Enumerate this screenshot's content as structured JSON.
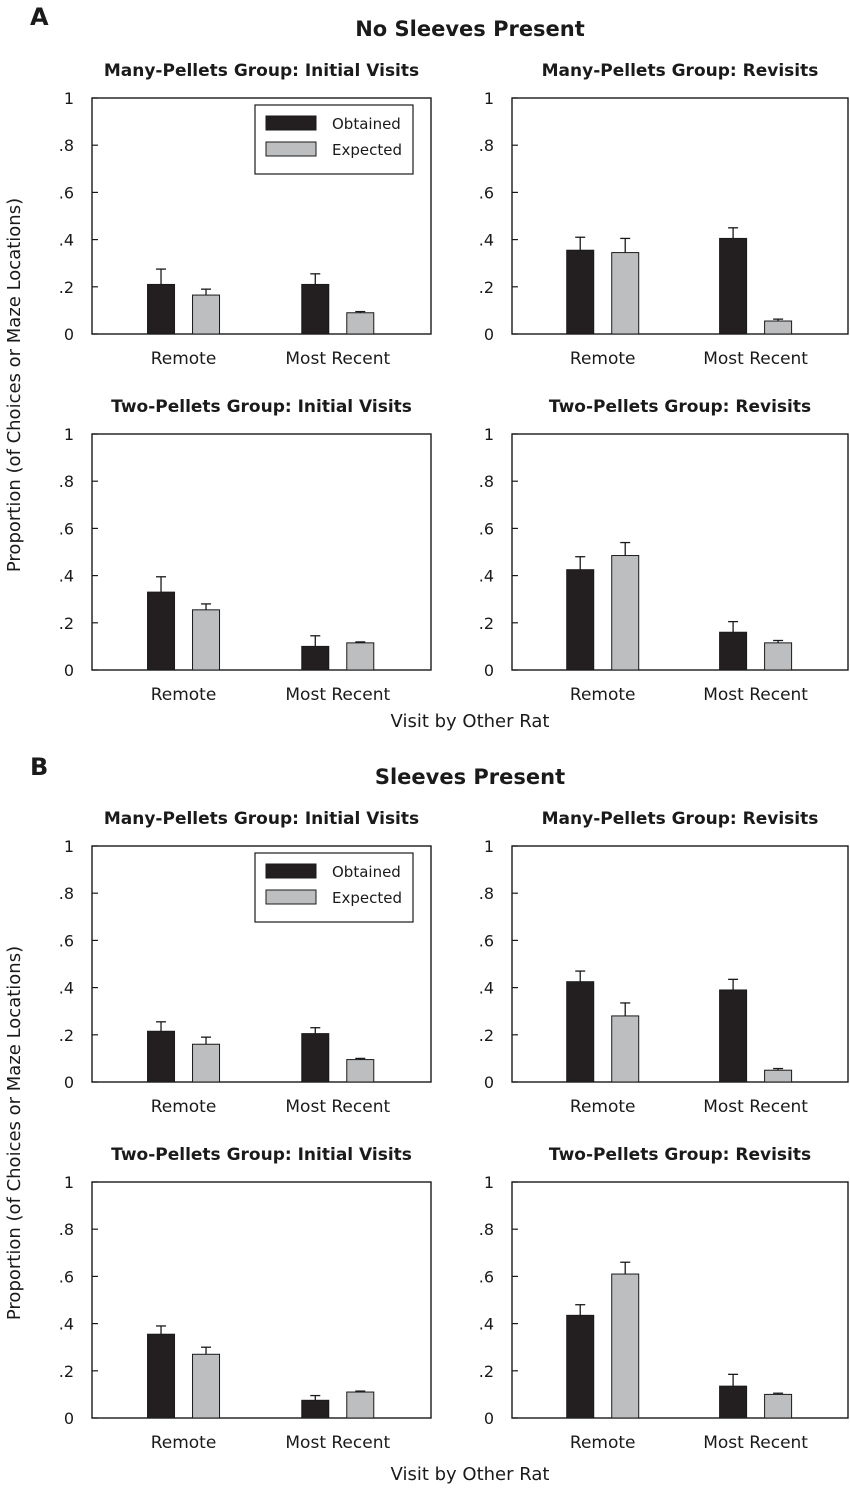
{
  "figure": {
    "ylabel": "Proportion (of Choices or Maze Locations)",
    "xlabel": "Visit by Other Rat",
    "colors": {
      "obtained": "#231f20",
      "expected": "#bcbec0",
      "frame": "#1a1a1a"
    }
  },
  "sections": [
    {
      "letter": "A",
      "title": "No Sleeves Present"
    },
    {
      "letter": "B",
      "title": "Sleeves Present"
    }
  ],
  "chart_data": [
    {
      "type": "bar",
      "section": "A",
      "title": "Many-Pellets Group: Initial Visits",
      "categories": [
        "Remote",
        "Most Recent"
      ],
      "series": [
        {
          "name": "Obtained",
          "values": [
            0.21,
            0.21
          ],
          "errors": [
            0.065,
            0.045
          ]
        },
        {
          "name": "Expected",
          "values": [
            0.165,
            0.09
          ],
          "errors": [
            0.025,
            0.005
          ]
        }
      ],
      "ylim": [
        0,
        1
      ],
      "yticks": [
        "0",
        ".2",
        ".4",
        ".6",
        ".8",
        "1"
      ],
      "legend": "top-right"
    },
    {
      "type": "bar",
      "section": "A",
      "title": "Many-Pellets Group: Revisits",
      "categories": [
        "Remote",
        "Most Recent"
      ],
      "series": [
        {
          "name": "Obtained",
          "values": [
            0.355,
            0.405
          ],
          "errors": [
            0.055,
            0.045
          ]
        },
        {
          "name": "Expected",
          "values": [
            0.345,
            0.055
          ],
          "errors": [
            0.06,
            0.008
          ]
        }
      ],
      "ylim": [
        0,
        1
      ],
      "yticks": [
        "0",
        ".2",
        ".4",
        ".6",
        ".8",
        "1"
      ]
    },
    {
      "type": "bar",
      "section": "A",
      "title": "Two-Pellets Group: Initial Visits",
      "categories": [
        "Remote",
        "Most Recent"
      ],
      "series": [
        {
          "name": "Obtained",
          "values": [
            0.33,
            0.1
          ],
          "errors": [
            0.065,
            0.045
          ]
        },
        {
          "name": "Expected",
          "values": [
            0.255,
            0.115
          ],
          "errors": [
            0.025,
            0.004
          ]
        }
      ],
      "ylim": [
        0,
        1
      ],
      "yticks": [
        "0",
        ".2",
        ".4",
        ".6",
        ".8",
        "1"
      ]
    },
    {
      "type": "bar",
      "section": "A",
      "title": "Two-Pellets Group: Revisits",
      "categories": [
        "Remote",
        "Most Recent"
      ],
      "series": [
        {
          "name": "Obtained",
          "values": [
            0.425,
            0.16
          ],
          "errors": [
            0.055,
            0.045
          ]
        },
        {
          "name": "Expected",
          "values": [
            0.485,
            0.115
          ],
          "errors": [
            0.055,
            0.01
          ]
        }
      ],
      "ylim": [
        0,
        1
      ],
      "yticks": [
        "0",
        ".2",
        ".4",
        ".6",
        ".8",
        "1"
      ]
    },
    {
      "type": "bar",
      "section": "B",
      "title": "Many-Pellets Group: Initial Visits",
      "categories": [
        "Remote",
        "Most Recent"
      ],
      "series": [
        {
          "name": "Obtained",
          "values": [
            0.215,
            0.205
          ],
          "errors": [
            0.04,
            0.025
          ]
        },
        {
          "name": "Expected",
          "values": [
            0.16,
            0.095
          ],
          "errors": [
            0.03,
            0.005
          ]
        }
      ],
      "ylim": [
        0,
        1
      ],
      "yticks": [
        "0",
        ".2",
        ".4",
        ".6",
        ".8",
        "1"
      ],
      "legend": "top-right"
    },
    {
      "type": "bar",
      "section": "B",
      "title": "Many-Pellets Group: Revisits",
      "categories": [
        "Remote",
        "Most Recent"
      ],
      "series": [
        {
          "name": "Obtained",
          "values": [
            0.425,
            0.39
          ],
          "errors": [
            0.045,
            0.045
          ]
        },
        {
          "name": "Expected",
          "values": [
            0.28,
            0.05
          ],
          "errors": [
            0.055,
            0.007
          ]
        }
      ],
      "ylim": [
        0,
        1
      ],
      "yticks": [
        "0",
        ".2",
        ".4",
        ".6",
        ".8",
        "1"
      ]
    },
    {
      "type": "bar",
      "section": "B",
      "title": "Two-Pellets Group: Initial Visits",
      "categories": [
        "Remote",
        "Most Recent"
      ],
      "series": [
        {
          "name": "Obtained",
          "values": [
            0.355,
            0.075
          ],
          "errors": [
            0.035,
            0.02
          ]
        },
        {
          "name": "Expected",
          "values": [
            0.27,
            0.11
          ],
          "errors": [
            0.03,
            0.004
          ]
        }
      ],
      "ylim": [
        0,
        1
      ],
      "yticks": [
        "0",
        ".2",
        ".4",
        ".6",
        ".8",
        "1"
      ]
    },
    {
      "type": "bar",
      "section": "B",
      "title": "Two-Pellets Group: Revisits",
      "categories": [
        "Remote",
        "Most Recent"
      ],
      "series": [
        {
          "name": "Obtained",
          "values": [
            0.435,
            0.135
          ],
          "errors": [
            0.045,
            0.05
          ]
        },
        {
          "name": "Expected",
          "values": [
            0.61,
            0.1
          ],
          "errors": [
            0.05,
            0.005
          ]
        }
      ],
      "ylim": [
        0,
        1
      ],
      "yticks": [
        "0",
        ".2",
        ".4",
        ".6",
        ".8",
        "1"
      ]
    }
  ]
}
